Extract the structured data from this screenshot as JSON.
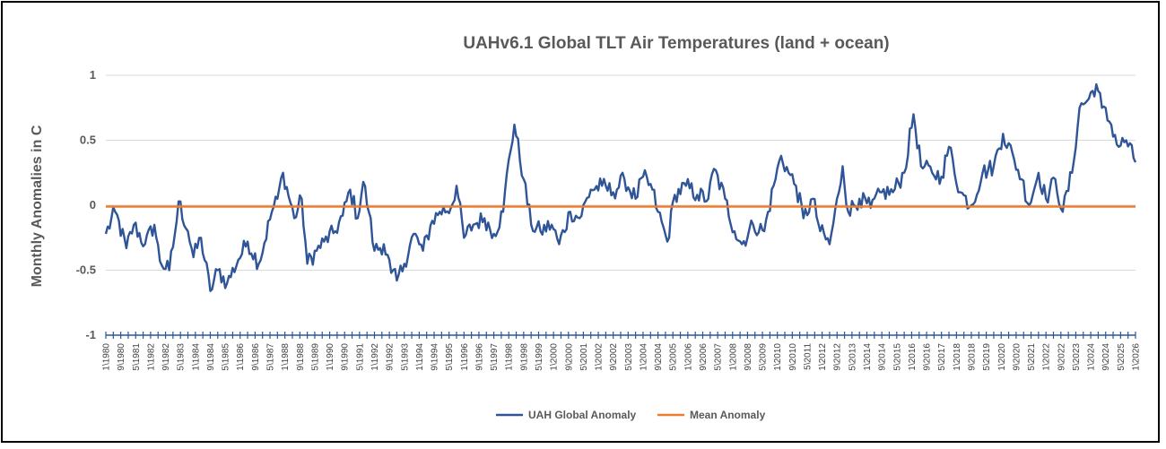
{
  "chart_data": {
    "type": "line",
    "title": "UAHv6.1 Global TLT Air Temperatures (land + ocean)",
    "xlabel": "",
    "ylabel": "Monthly Anomalies in C",
    "ylim": [
      -1,
      1
    ],
    "yticks": [
      {
        "value": 1,
        "label": "1"
      },
      {
        "value": 0.5,
        "label": "0.5"
      },
      {
        "value": 0,
        "label": "0"
      },
      {
        "value": -0.5,
        "label": "-0.5"
      },
      {
        "value": -1,
        "label": "-1"
      }
    ],
    "x_labels": [
      "1\\1980",
      "9\\1980",
      "5\\1981",
      "1\\1982",
      "9\\1982",
      "5\\1983",
      "1\\1984",
      "9\\1984",
      "5\\1985",
      "1\\1986",
      "9\\1986",
      "5\\1987",
      "1\\1988",
      "9\\1988",
      "5\\1989",
      "1\\1990",
      "9\\1990",
      "5\\1991",
      "1\\1992",
      "9\\1992",
      "5\\1993",
      "1\\1994",
      "9\\1994",
      "5\\1995",
      "1\\1996",
      "9\\1996",
      "5\\1997",
      "1\\1998",
      "9\\1998",
      "5\\1999",
      "1\\2000",
      "9\\2000",
      "5\\2001",
      "1\\2002",
      "9\\2002",
      "5\\2003",
      "1\\2004",
      "9\\2004",
      "5\\2005",
      "1\\2006",
      "9\\2006",
      "5\\2007",
      "1\\2008",
      "9\\2008",
      "5\\2009",
      "1\\2010",
      "9\\2010",
      "5\\2011",
      "1\\2012",
      "9\\2012",
      "5\\2013",
      "1\\2014",
      "9\\2014",
      "5\\2015",
      "1\\2016",
      "9\\2016",
      "5\\2017",
      "1\\2018",
      "9\\2018",
      "5\\2019",
      "1\\2020",
      "9\\2020",
      "5\\2021",
      "1\\2022",
      "9\\2022",
      "5\\2023",
      "1\\2024",
      "9\\2024",
      "5\\2025",
      "1\\2026"
    ],
    "x_start": "1980-01",
    "x_end": "2026-01",
    "grid": true,
    "legend_position": "bottom",
    "series": [
      {
        "name": "UAH Global Anomaly",
        "color": "#2f5597",
        "keypoints": [
          [
            "1980-01",
            -0.22
          ],
          [
            "1980-06",
            -0.05
          ],
          [
            "1980-12",
            -0.33
          ],
          [
            "1981-04",
            -0.15
          ],
          [
            "1981-10",
            -0.3
          ],
          [
            "1982-03",
            -0.15
          ],
          [
            "1982-06",
            -0.43
          ],
          [
            "1982-11",
            -0.5
          ],
          [
            "1983-03",
            -0.12
          ],
          [
            "1983-04",
            0.03
          ],
          [
            "1983-09",
            -0.2
          ],
          [
            "1983-12",
            -0.4
          ],
          [
            "1984-04",
            -0.25
          ],
          [
            "1984-09",
            -0.66
          ],
          [
            "1985-01",
            -0.5
          ],
          [
            "1985-06",
            -0.6
          ],
          [
            "1985-12",
            -0.42
          ],
          [
            "1986-05",
            -0.28
          ],
          [
            "1986-11",
            -0.45
          ],
          [
            "1987-06",
            -0.05
          ],
          [
            "1987-09",
            0.05
          ],
          [
            "1987-12",
            0.25
          ],
          [
            "1988-06",
            -0.1
          ],
          [
            "1988-10",
            0.05
          ],
          [
            "1989-01",
            -0.45
          ],
          [
            "1989-06",
            -0.35
          ],
          [
            "1989-10",
            -0.28
          ],
          [
            "1990-04",
            -0.2
          ],
          [
            "1990-08",
            -0.08
          ],
          [
            "1990-12",
            0.12
          ],
          [
            "1991-04",
            -0.1
          ],
          [
            "1991-07",
            0.18
          ],
          [
            "1991-10",
            -0.05
          ],
          [
            "1992-01",
            -0.35
          ],
          [
            "1992-06",
            -0.3
          ],
          [
            "1992-10",
            -0.52
          ],
          [
            "1993-01",
            -0.58
          ],
          [
            "1993-05",
            -0.45
          ],
          [
            "1993-10",
            -0.22
          ],
          [
            "1994-03",
            -0.35
          ],
          [
            "1994-08",
            -0.12
          ],
          [
            "1994-12",
            -0.05
          ],
          [
            "1995-06",
            -0.02
          ],
          [
            "1995-09",
            0.15
          ],
          [
            "1996-01",
            -0.25
          ],
          [
            "1996-06",
            -0.15
          ],
          [
            "1996-12",
            -0.1
          ],
          [
            "1997-05",
            -0.22
          ],
          [
            "1997-10",
            -0.05
          ],
          [
            "1998-01",
            0.35
          ],
          [
            "1998-04",
            0.62
          ],
          [
            "1998-09",
            0.2
          ],
          [
            "1999-01",
            -0.15
          ],
          [
            "1999-06",
            -0.2
          ],
          [
            "1999-12",
            -0.15
          ],
          [
            "2000-04",
            -0.3
          ],
          [
            "2000-10",
            -0.05
          ],
          [
            "2001-03",
            -0.1
          ],
          [
            "2001-09",
            0.12
          ],
          [
            "2002-03",
            0.15
          ],
          [
            "2002-09",
            0.1
          ],
          [
            "2003-03",
            0.2
          ],
          [
            "2003-09",
            0.05
          ],
          [
            "2004-01",
            0.22
          ],
          [
            "2004-06",
            0.12
          ],
          [
            "2004-09",
            -0.05
          ],
          [
            "2005-02",
            -0.28
          ],
          [
            "2005-06",
            0.08
          ],
          [
            "2005-12",
            0.15
          ],
          [
            "2006-06",
            0.08
          ],
          [
            "2006-12",
            0.05
          ],
          [
            "2007-03",
            0.28
          ],
          [
            "2007-09",
            0.05
          ],
          [
            "2008-02",
            -0.2
          ],
          [
            "2008-06",
            -0.3
          ],
          [
            "2008-12",
            -0.15
          ],
          [
            "2009-06",
            -0.2
          ],
          [
            "2009-11",
            0.15
          ],
          [
            "2010-03",
            0.38
          ],
          [
            "2010-07",
            0.25
          ],
          [
            "2010-11",
            0.15
          ],
          [
            "2011-03",
            -0.1
          ],
          [
            "2011-08",
            0.05
          ],
          [
            "2011-12",
            -0.2
          ],
          [
            "2012-05",
            -0.3
          ],
          [
            "2012-10",
            0.1
          ],
          [
            "2012-12",
            0.3
          ],
          [
            "2013-03",
            -0.05
          ],
          [
            "2013-09",
            0.05
          ],
          [
            "2014-03",
            -0.02
          ],
          [
            "2014-09",
            0.1
          ],
          [
            "2015-03",
            0.1
          ],
          [
            "2015-09",
            0.25
          ],
          [
            "2016-02",
            0.7
          ],
          [
            "2016-06",
            0.3
          ],
          [
            "2016-12",
            0.25
          ],
          [
            "2017-05",
            0.22
          ],
          [
            "2017-09",
            0.45
          ],
          [
            "2018-03",
            0.1
          ],
          [
            "2018-09",
            0.0
          ],
          [
            "2019-03",
            0.25
          ],
          [
            "2019-09",
            0.3
          ],
          [
            "2020-02",
            0.55
          ],
          [
            "2020-08",
            0.35
          ],
          [
            "2020-12",
            0.2
          ],
          [
            "2021-04",
            0.0
          ],
          [
            "2021-09",
            0.25
          ],
          [
            "2022-01",
            0.05
          ],
          [
            "2022-06",
            0.2
          ],
          [
            "2022-10",
            -0.05
          ],
          [
            "2023-03",
            0.25
          ],
          [
            "2023-07",
            0.75
          ],
          [
            "2023-12",
            0.82
          ],
          [
            "2024-04",
            0.93
          ],
          [
            "2024-07",
            0.75
          ],
          [
            "2024-12",
            0.62
          ],
          [
            "2025-04",
            0.45
          ],
          [
            "2025-08",
            0.5
          ],
          [
            "2026-01",
            0.33
          ]
        ]
      },
      {
        "name": "Mean Anomaly",
        "color": "#ed7d31",
        "constant": -0.01
      }
    ]
  }
}
